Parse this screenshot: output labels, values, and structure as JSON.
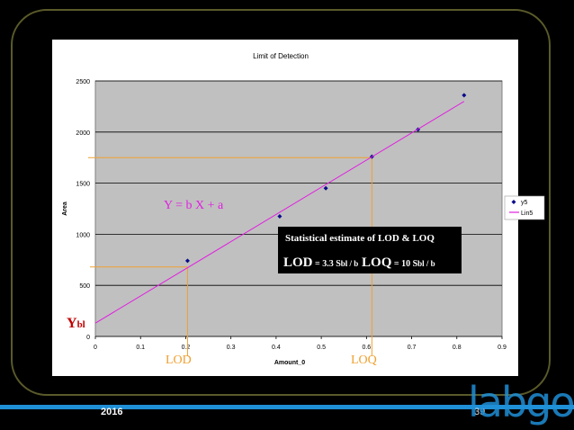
{
  "chart_data": {
    "type": "scatter",
    "title": "Limit of Detection",
    "xlabel": "Amount_0",
    "ylabel": "Area",
    "xlim": [
      0,
      0.9
    ],
    "ylim": [
      0,
      2500
    ],
    "x_ticks": [
      "0",
      "0.1",
      "0.2",
      "0.3",
      "0.4",
      "0.5",
      "0.6",
      "0.7",
      "0.8",
      "0.9"
    ],
    "y_ticks": [
      "0",
      "500",
      "1000",
      "1500",
      "2000",
      "2500"
    ],
    "grid": "horizontal",
    "legend_position": "right",
    "series": [
      {
        "name": "y5",
        "kind": "points",
        "color": "#0a0a8c",
        "x": [
          0.204,
          0.408,
          0.51,
          0.612,
          0.714,
          0.816
        ],
        "y": [
          740,
          1175,
          1450,
          1760,
          2025,
          2360
        ]
      },
      {
        "name": "Lin5",
        "kind": "line",
        "color": "#e020e0",
        "x": [
          0.0,
          0.816
        ],
        "y": [
          130,
          2300
        ]
      }
    ],
    "annotations": {
      "equation": "Y = b X + a",
      "ybl_main": "Y",
      "ybl_sub": "bl",
      "lod_label": "LOD",
      "loq_label": "LOQ",
      "lod_x": 0.204,
      "lod_y": 680,
      "loq_x": 0.612,
      "loq_y": 1750,
      "box_title": "Statistical estimate of LOD & LOQ",
      "box_lod": "LOD",
      "box_lod_factor": " = 3.3 S",
      "box_lod_tail": "bl / b",
      "box_loq": "LOQ",
      "box_loq_factor": " = 10 S",
      "box_loq_tail": "bl / b"
    },
    "colors": {
      "plot_bg": "#c0c0c0",
      "guide_line": "#f0a030",
      "annotation_text": "#f0a030",
      "equation_text": "#e020e0"
    }
  },
  "footer": {
    "year": "2016",
    "page": "39",
    "logo": "labgo"
  }
}
